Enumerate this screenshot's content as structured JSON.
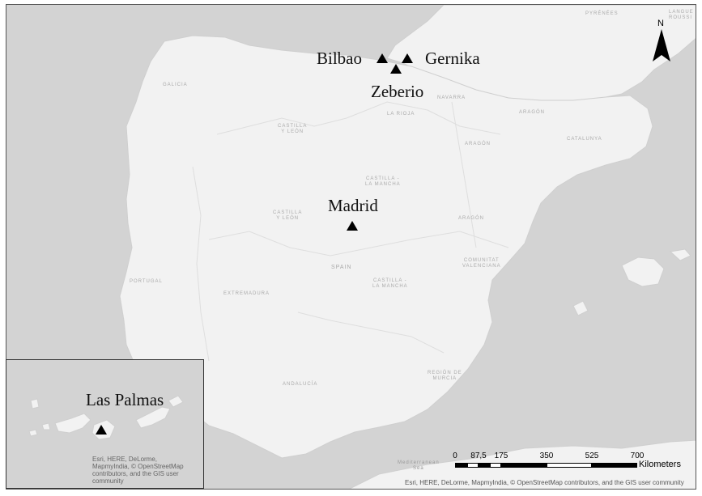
{
  "places": [
    {
      "name": "Bilbao"
    },
    {
      "name": "Gernika"
    },
    {
      "name": "Zeberio"
    },
    {
      "name": "Madrid"
    },
    {
      "name": "Las Palmas"
    }
  ],
  "regions": {
    "galicia": "GALICIA",
    "castilla_leon_north": "CASTILLA\nY LEÓN",
    "castilla_leon_south": "CASTILLA\nY LEÓN",
    "rioja": "LA RIOJA",
    "navarra": "NAVARRA",
    "aragon_1": "ARAGÓN",
    "aragon_2": "ARAGÓN",
    "aragon_3": "ARAGÓN",
    "catalunya": "CATALUNYA",
    "castilla_mancha_1": "CASTILLA -\nLA MANCHA",
    "castilla_mancha_2": "CASTILLA -\nLA MANCHA",
    "spain": "SPAIN",
    "portugal": "PORTUGAL",
    "extremadura": "EXTREMADURA",
    "valenciana": "COMUNITAT\nVALENCIANA",
    "andalucia": "ANDALUCÍA",
    "murcia": "REGIÓN DE\nMURCIA",
    "pyrenees": "PYRÉNÉES",
    "languedoc": "LANGUE\nROUSSI",
    "med": "Mediterranean\nSea"
  },
  "north_arrow": {
    "letter": "N"
  },
  "scale_bar": {
    "ticks": [
      "0",
      "87,5",
      "175",
      "350",
      "525",
      "700"
    ],
    "unit": "Kilometers"
  },
  "credits": {
    "main": "Esri, HERE, DeLorme, MapmyIndia, © OpenStreetMap contributors, and the GIS user community",
    "inset": "Esri, HERE, DeLorme,\nMapmyIndia, © OpenStreetMap\ncontributors, and the GIS user\ncommunity"
  },
  "colors": {
    "sea": "#d3d3d3",
    "land": "#f2f2f2",
    "marker": "#000000"
  }
}
